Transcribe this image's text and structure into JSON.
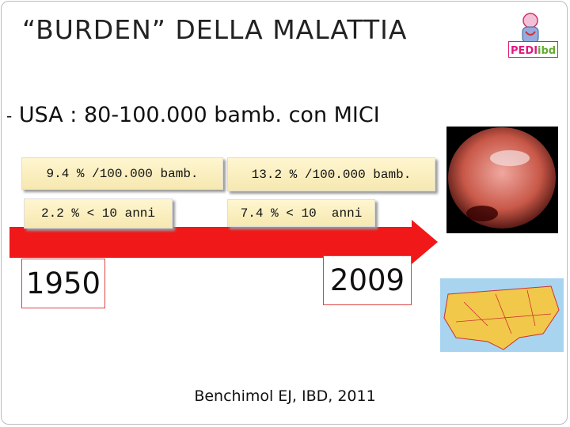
{
  "title": "“BURDEN” DELLA MALATTIA",
  "logo": {
    "left": "PEDI",
    "right": "ibd"
  },
  "bullet": {
    "marker": "-",
    "country": "USA",
    "text": ": 80-100.000 bamb. con MICI"
  },
  "boxes": [
    "9.4 % /100.000 bamb.",
    "2.2 % < 10 anni",
    "13.2 % /100.000 bamb.",
    "7.4 % < 10  anni"
  ],
  "years": [
    "1950",
    "2009"
  ],
  "citation": "Benchimol EJ, IBD, 2011"
}
